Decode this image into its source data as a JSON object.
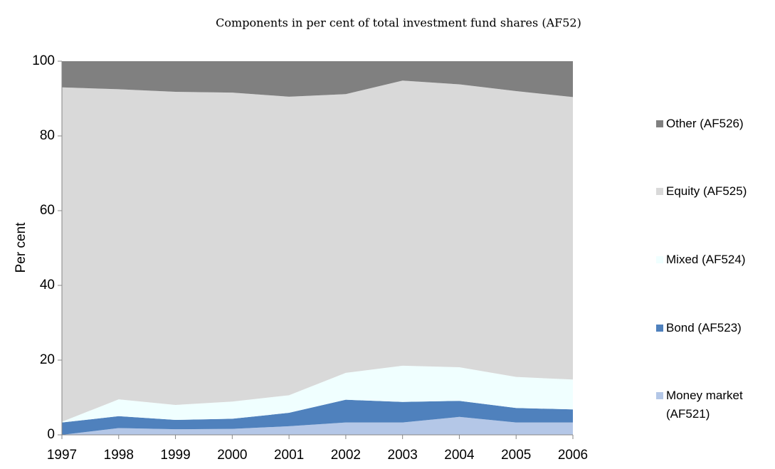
{
  "chart_data": {
    "type": "stacked_area",
    "title": "Components in per cent of total investment fund shares (AF52)",
    "y_label": "Per cent",
    "categories": [
      "1997",
      "1998",
      "1999",
      "2000",
      "2001",
      "2002",
      "2003",
      "2004",
      "2005",
      "2006"
    ],
    "series": [
      {
        "name": "Money market (AF521)",
        "color": "#b4c7e7",
        "values": [
          0,
          1.8,
          1.5,
          1.6,
          2.3,
          3.3,
          3.3,
          4.8,
          3.3,
          3.3
        ]
      },
      {
        "name": "Bond (AF523)",
        "color": "#4f81bd",
        "values": [
          3.3,
          3.2,
          2.5,
          2.7,
          3.6,
          6.1,
          5.5,
          4.3,
          3.9,
          3.5
        ]
      },
      {
        "name": "Mixed (AF524)",
        "color": "#f0ffff",
        "values": [
          0.2,
          4.5,
          4.0,
          4.6,
          4.7,
          7.2,
          9.7,
          9.0,
          8.3,
          8.0
        ]
      },
      {
        "name": "Equity (AF525)",
        "color": "#d9d9d9",
        "values": [
          89.5,
          83.0,
          83.8,
          82.7,
          79.9,
          74.6,
          76.3,
          75.7,
          76.5,
          75.6
        ]
      },
      {
        "name": "Other (AF526)",
        "color": "#808080",
        "values": [
          7.0,
          7.5,
          8.2,
          8.4,
          9.5,
          8.8,
          5.2,
          6.2,
          8.0,
          9.6
        ]
      }
    ],
    "ylim": [
      0,
      100
    ],
    "yticks": [
      0,
      20,
      40,
      60,
      80,
      100
    ],
    "legend": "right"
  }
}
